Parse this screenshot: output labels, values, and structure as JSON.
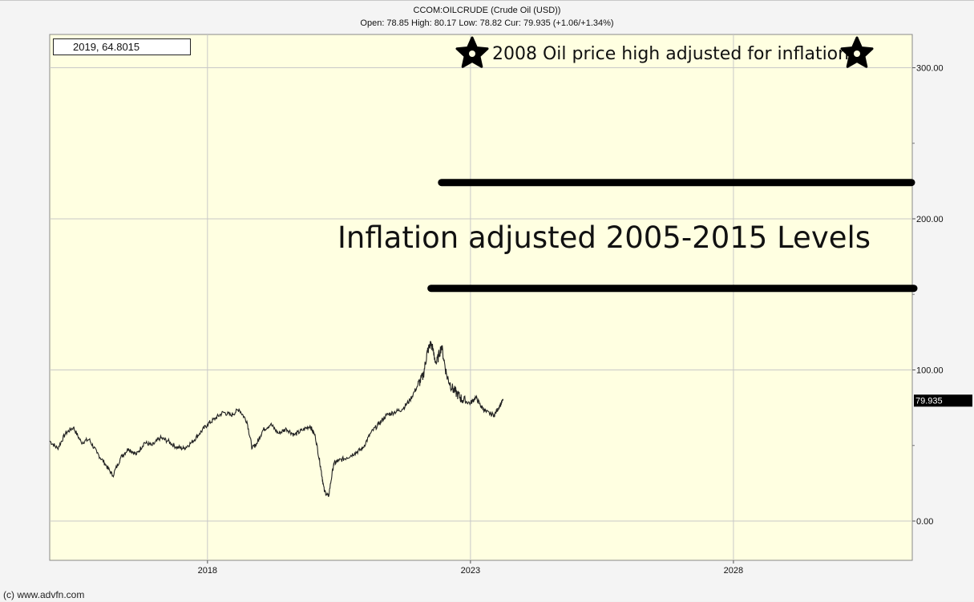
{
  "header": {
    "title": "CCOM:OILCRUDE (Crude Oil (USD))",
    "subtitle": "Open: 78.85 High: 80.17 Low: 78.82 Cur: 79.935 (+1.06/+1.34%)"
  },
  "cursor_readout": "2019, 64.8015",
  "footer": "(c) www.advfn.com",
  "colors": {
    "plot_bg": "#ffffe1",
    "grid": "#c8c8c8",
    "price_line": "#222222",
    "annotation": "#000000",
    "price_tag_bg": "#000000"
  },
  "chart_data": {
    "type": "line",
    "xlim": [
      2015.0,
      2031.4
    ],
    "ylim": [
      -26,
      322
    ],
    "x_ticks": [
      2018,
      2023,
      2028
    ],
    "x_tick_labels": [
      "2018",
      "2023",
      "2028"
    ],
    "y_ticks": [
      0,
      100,
      200,
      300
    ],
    "y_tick_labels": [
      "0.00",
      "100.00",
      "200.00",
      "300.00"
    ],
    "grid": true,
    "current_value": 79.935,
    "current_label": "79.935",
    "series": [
      {
        "x": [
          2015.0,
          2015.15,
          2015.3,
          2015.45,
          2015.6,
          2015.75,
          2015.9,
          2016.05,
          2016.2,
          2016.35,
          2016.5,
          2016.65,
          2016.8,
          2016.95,
          2017.1,
          2017.25,
          2017.4,
          2017.55,
          2017.7,
          2017.85,
          2018.0,
          2018.15,
          2018.3,
          2018.45,
          2018.6,
          2018.75,
          2018.85,
          2018.95,
          2019.05,
          2019.2,
          2019.35,
          2019.5,
          2019.65,
          2019.8,
          2019.95,
          2020.05,
          2020.15,
          2020.22,
          2020.3,
          2020.4,
          2020.5,
          2020.65,
          2020.8,
          2020.95,
          2021.1,
          2021.25,
          2021.4,
          2021.55,
          2021.7,
          2021.85,
          2022.0,
          2022.1,
          2022.18,
          2022.25,
          2022.35,
          2022.45,
          2022.55,
          2022.65,
          2022.75,
          2022.85,
          2023.0,
          2023.1,
          2023.2,
          2023.3,
          2023.45,
          2023.55,
          2023.62
        ],
        "y": [
          53,
          48,
          58,
          62,
          52,
          54,
          45,
          38,
          30,
          42,
          48,
          44,
          52,
          50,
          55,
          53,
          49,
          48,
          52,
          58,
          64,
          68,
          72,
          70,
          74,
          66,
          48,
          52,
          60,
          64,
          58,
          61,
          57,
          60,
          63,
          56,
          36,
          20,
          16,
          38,
          40,
          42,
          45,
          48,
          58,
          64,
          70,
          72,
          74,
          80,
          90,
          96,
          112,
          118,
          104,
          116,
          96,
          88,
          84,
          80,
          78,
          82,
          76,
          72,
          70,
          76,
          79.9
        ]
      }
    ],
    "annotations": [
      {
        "text": "2008 Oil price high adjusted for inflation",
        "y": 310
      },
      {
        "text": "Inflation adjusted 2005-2015 Levels",
        "y": 188
      },
      {
        "line_from_x": 2022.45,
        "line_to_x": 2031.4,
        "y": 224
      },
      {
        "line_from_x": 2022.25,
        "line_to_x": 2031.4,
        "y": 154
      }
    ]
  }
}
